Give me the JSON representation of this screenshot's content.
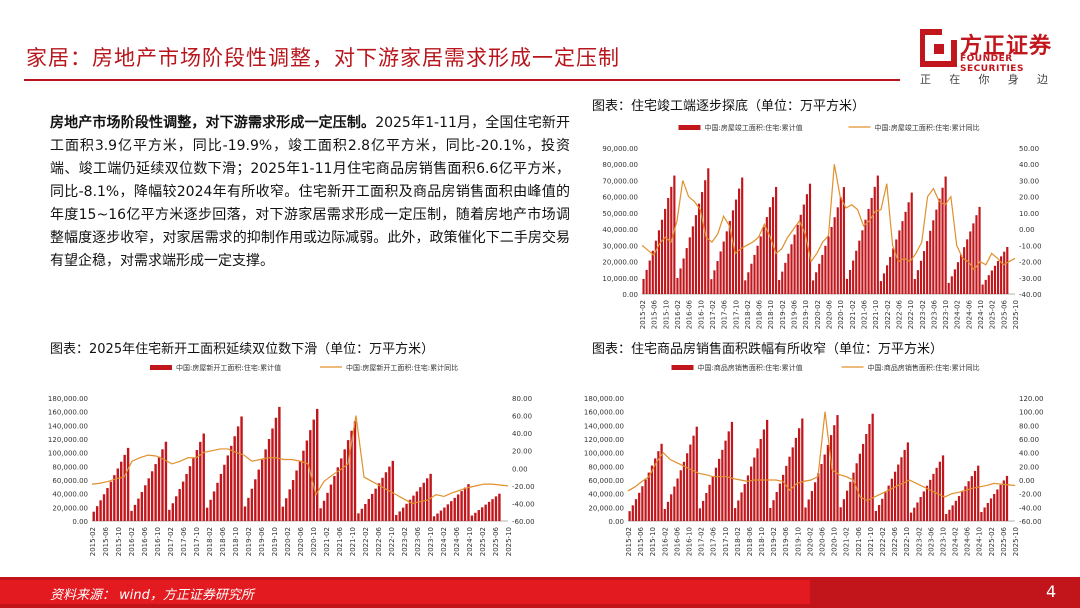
{
  "header": {
    "title": "家居：房地产市场阶段性调整，对下游家居需求形成一定压制",
    "logo_cn": "方正证券",
    "logo_en": "FOUNDER SECURITIES",
    "slogan": [
      "正",
      "在",
      "你",
      "身",
      "边"
    ]
  },
  "summary": {
    "lead": "房地产市场阶段性调整，对下游需求形成一定压制。",
    "body": "2025年1-11月，全国住宅新开工面积3.9亿平方米，同比-19.9%，竣工面积2.8亿平方米，同比-20.1%，投资端、竣工端仍延续双位数下滑；2025年1-11月住宅商品房销售面积6.6亿平方米，同比-8.1%，降幅较2024年有所收窄。住宅新开工面积及商品房销售面积由峰值的年度15~16亿平方米逐步回落，对下游家居需求形成一定压制，随着房地产市场调整幅度逐步收窄，对家居需求的抑制作用或边际减弱。此外，政策催化下二手房交易有望企稳，对需求端形成一定支撑。"
  },
  "footer": {
    "source": "资料来源： wind，方正证券研究所",
    "page": "4"
  },
  "colors": {
    "bar": "#c0161c",
    "line": "#e0902c",
    "brand": "#b8161c"
  },
  "chart_data": [
    {
      "id": "completion",
      "type": "bar",
      "title": "图表：住宅竣工端逐步探底（单位：万平方米）",
      "legend": [
        "中国:房屋竣工面积:住宅:累计值",
        "中国:房屋竣工面积:住宅:累计同比"
      ],
      "x_ticks": [
        "2015-02",
        "2015-06",
        "2015-10",
        "2016-02",
        "2016-06",
        "2016-10",
        "2017-02",
        "2017-06",
        "2017-10",
        "2018-02",
        "2018-06",
        "2018-10",
        "2019-02",
        "2019-06",
        "2019-10",
        "2020-02",
        "2020-06",
        "2020-10",
        "2021-02",
        "2021-06",
        "2021-10",
        "2022-02",
        "2022-06",
        "2022-10",
        "2023-02",
        "2023-06",
        "2023-10",
        "2024-02",
        "2024-06",
        "2024-10",
        "2025-02",
        "2025-06",
        "2025-10"
      ],
      "y_left": {
        "min": 0,
        "max": 90000,
        "ticks": [
          "0.00",
          "10,000.00",
          "20,000.00",
          "30,000.00",
          "40,000.00",
          "50,000.00",
          "60,000.00",
          "70,000.00",
          "80,000.00",
          "90,000.00"
        ]
      },
      "y_right": {
        "min": -40,
        "max": 50,
        "ticks": [
          "-40.00",
          "-30.00",
          "-20.00",
          "-10.00",
          "0.00",
          "10.00",
          "20.00",
          "30.00",
          "40.00",
          "50.00"
        ]
      },
      "year_peaks": [
        73000,
        77500,
        71800,
        66000,
        68000,
        65900,
        73000,
        62500,
        72400,
        53700,
        29000
      ],
      "yoy": [
        -10,
        -13,
        -16,
        -9,
        -5,
        -8,
        5,
        30,
        20,
        17,
        12,
        -5,
        -8,
        -3,
        8,
        2,
        -15,
        -12,
        -10,
        -8,
        -5,
        3,
        -5,
        -15,
        -12,
        -5,
        0,
        5,
        -3,
        -20,
        -15,
        -8,
        -4,
        40,
        20,
        13,
        15,
        12,
        2,
        5,
        11,
        12,
        28,
        -10,
        -20,
        -18,
        -20,
        -15,
        -8,
        20,
        25,
        17,
        15,
        20,
        -10,
        -18,
        -20,
        -25,
        -20,
        -22,
        -15,
        -18,
        -22,
        -20,
        -18
      ]
    },
    {
      "id": "new_starts",
      "type": "bar",
      "title": "图表：2025年住宅新开工面积延续双位数下滑（单位：万平方米）",
      "legend": [
        "中国:房屋新开工面积:住宅:累计值",
        "中国:房屋新开工面积:住宅:累计同比"
      ],
      "x_ticks": [
        "2015-02",
        "2015-06",
        "2015-10",
        "2016-02",
        "2016-06",
        "2016-10",
        "2017-02",
        "2017-06",
        "2017-10",
        "2018-02",
        "2018-06",
        "2018-10",
        "2019-02",
        "2019-06",
        "2019-10",
        "2020-02",
        "2020-06",
        "2020-10",
        "2021-02",
        "2021-06",
        "2021-10",
        "2022-02",
        "2022-06",
        "2022-10",
        "2023-02",
        "2023-06",
        "2023-10",
        "2024-02",
        "2024-06",
        "2024-10",
        "2025-02",
        "2025-06",
        "2025-10"
      ],
      "y_left": {
        "min": 0,
        "max": 180000,
        "ticks": [
          "0.00",
          "20,000.00",
          "40,000.00",
          "60,000.00",
          "80,000.00",
          "100,000.00",
          "120,000.00",
          "140,000.00",
          "160,000.00",
          "180,000.00"
        ]
      },
      "y_right": {
        "min": -60,
        "max": 80,
        "ticks": [
          "-60.00",
          "-40.00",
          "-20.00",
          "0.00",
          "20.00",
          "40.00",
          "60.00",
          "80.00"
        ]
      },
      "year_peaks": [
        107000,
        116000,
        128000,
        153000,
        167000,
        164000,
        146000,
        88000,
        69000,
        54000,
        40000
      ],
      "yoy": [
        -18,
        -17,
        -15,
        -12,
        -10,
        8,
        12,
        15,
        14,
        10,
        5,
        8,
        12,
        12,
        18,
        20,
        22,
        22,
        18,
        15,
        8,
        10,
        12,
        12,
        10,
        10,
        8,
        5,
        -30,
        -15,
        -8,
        -2,
        5,
        60,
        -10,
        -15,
        -20,
        -25,
        -30,
        -35,
        -40,
        -38,
        -36,
        -30,
        -32,
        -28,
        -25,
        -22,
        -20,
        -18,
        -18,
        -19,
        -20
      ]
    },
    {
      "id": "sales",
      "type": "bar",
      "title": "图表：住宅商品房销售面积跌幅有所收窄（单位：万平方米）",
      "legend": [
        "中国:商品房销售面积:住宅:累计值",
        "中国:商品房销售面积:住宅:累计同比"
      ],
      "x_ticks": [
        "2015-02",
        "2015-06",
        "2015-10",
        "2016-02",
        "2016-06",
        "2016-10",
        "2017-02",
        "2017-06",
        "2017-10",
        "2018-02",
        "2018-06",
        "2018-10",
        "2019-02",
        "2019-06",
        "2019-10",
        "2020-02",
        "2020-06",
        "2020-10",
        "2021-02",
        "2021-06",
        "2021-10",
        "2022-02",
        "2022-06",
        "2022-10",
        "2023-02",
        "2023-06",
        "2023-10",
        "2024-02",
        "2024-06",
        "2024-10",
        "2025-02",
        "2025-06",
        "2025-10"
      ],
      "y_left": {
        "min": 0,
        "max": 180000,
        "ticks": [
          "0.00",
          "20,000.00",
          "40,000.00",
          "60,000.00",
          "80,000.00",
          "100,000.00",
          "120,000.00",
          "140,000.00",
          "160,000.00",
          "180,000.00"
        ]
      },
      "y_right": {
        "min": -60,
        "max": 120,
        "ticks": [
          "-60.00",
          "-40.00",
          "-20.00",
          "0.00",
          "20.00",
          "40.00",
          "60.00",
          "80.00",
          "100.00",
          "120.00"
        ]
      },
      "year_peaks": [
        113000,
        138000,
        145000,
        148000,
        150000,
        155000,
        157000,
        115000,
        96000,
        81000,
        66000
      ],
      "yoy": [
        -16,
        -10,
        -2,
        5,
        25,
        40,
        30,
        25,
        20,
        15,
        10,
        8,
        5,
        5,
        5,
        2,
        0,
        -2,
        0,
        0,
        0,
        0,
        -2,
        -15,
        -5,
        -2,
        0,
        5,
        100,
        15,
        8,
        5,
        0,
        -25,
        -30,
        -25,
        -20,
        -15,
        -10,
        -5,
        0,
        -5,
        -10,
        -15,
        -20,
        -25,
        -20,
        -18,
        -15,
        -12,
        -10,
        -8,
        -5,
        -6,
        -7,
        -8
      ]
    }
  ]
}
